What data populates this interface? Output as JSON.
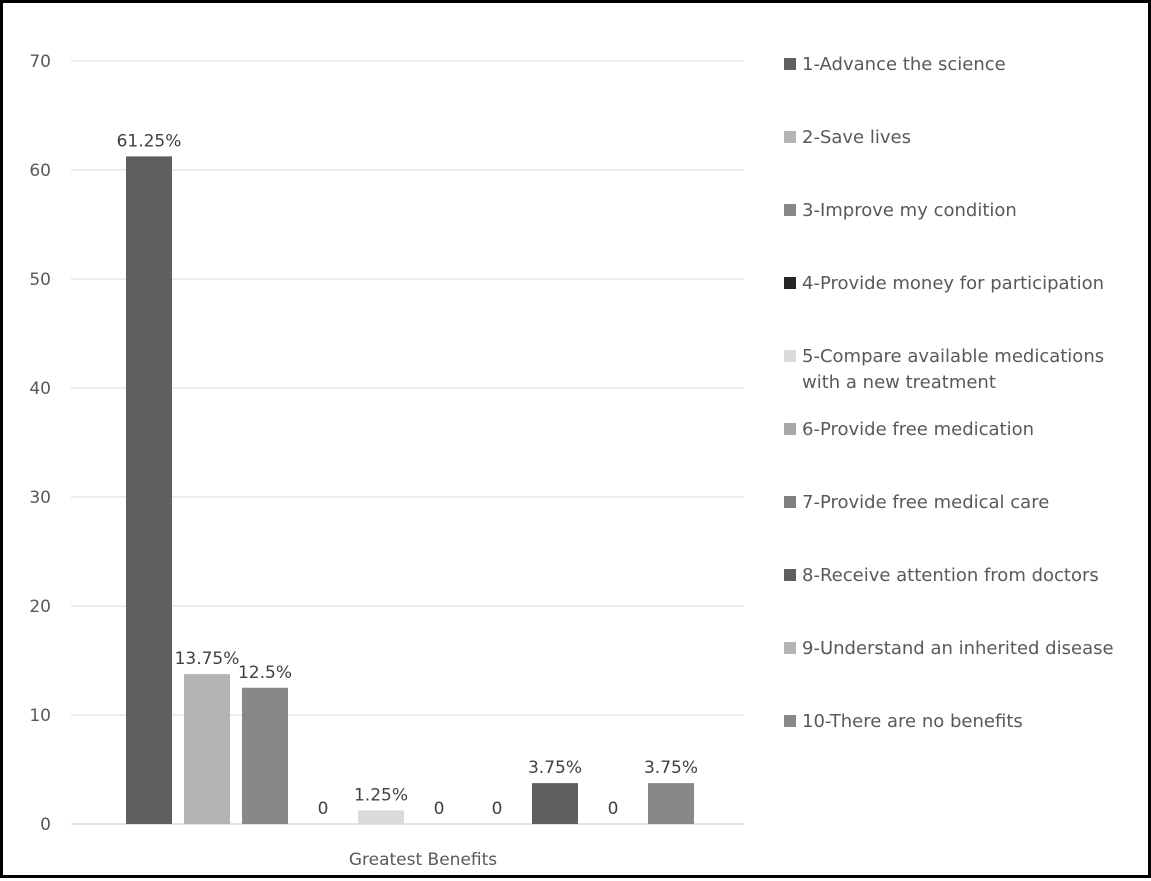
{
  "chart_data": {
    "type": "bar",
    "category": "Greatest Benefits",
    "ylim": [
      0,
      70
    ],
    "yticks": [
      0,
      10,
      20,
      30,
      40,
      50,
      60,
      70
    ],
    "grid": true,
    "legend_position": "right",
    "series": [
      {
        "name": "1-Advance the science",
        "value": 61.25,
        "label": "61.25%",
        "color": "#5f5f5f"
      },
      {
        "name": "2-Save lives",
        "value": 13.75,
        "label": "13.75%",
        "color": "#b4b4b4"
      },
      {
        "name": "3-Improve my condition",
        "value": 12.5,
        "label": "12.5%",
        "color": "#888888"
      },
      {
        "name": "4-Provide money for participation",
        "value": 0,
        "label": "0",
        "color": "#262626"
      },
      {
        "name": "5-Compare available medications with a new treatment",
        "legend_lines": [
          "5-Compare available medications",
          "with a new treatment"
        ],
        "value": 1.25,
        "label": "1.25%",
        "color": "#dadada"
      },
      {
        "name": "6-Provide free medication",
        "value": 0,
        "label": "0",
        "color": "#a9a9a9"
      },
      {
        "name": "7-Provide free medical care",
        "value": 0,
        "label": "0",
        "color": "#7f7f7f"
      },
      {
        "name": "8-Receive attention from doctors",
        "value": 3.75,
        "label": "3.75%",
        "color": "#5f5f5f"
      },
      {
        "name": "9-Understand an inherited disease",
        "value": 0,
        "label": "0",
        "color": "#b4b4b4"
      },
      {
        "name": "10-There are no benefits",
        "value": 3.75,
        "label": "3.75%",
        "color": "#888888"
      }
    ]
  }
}
